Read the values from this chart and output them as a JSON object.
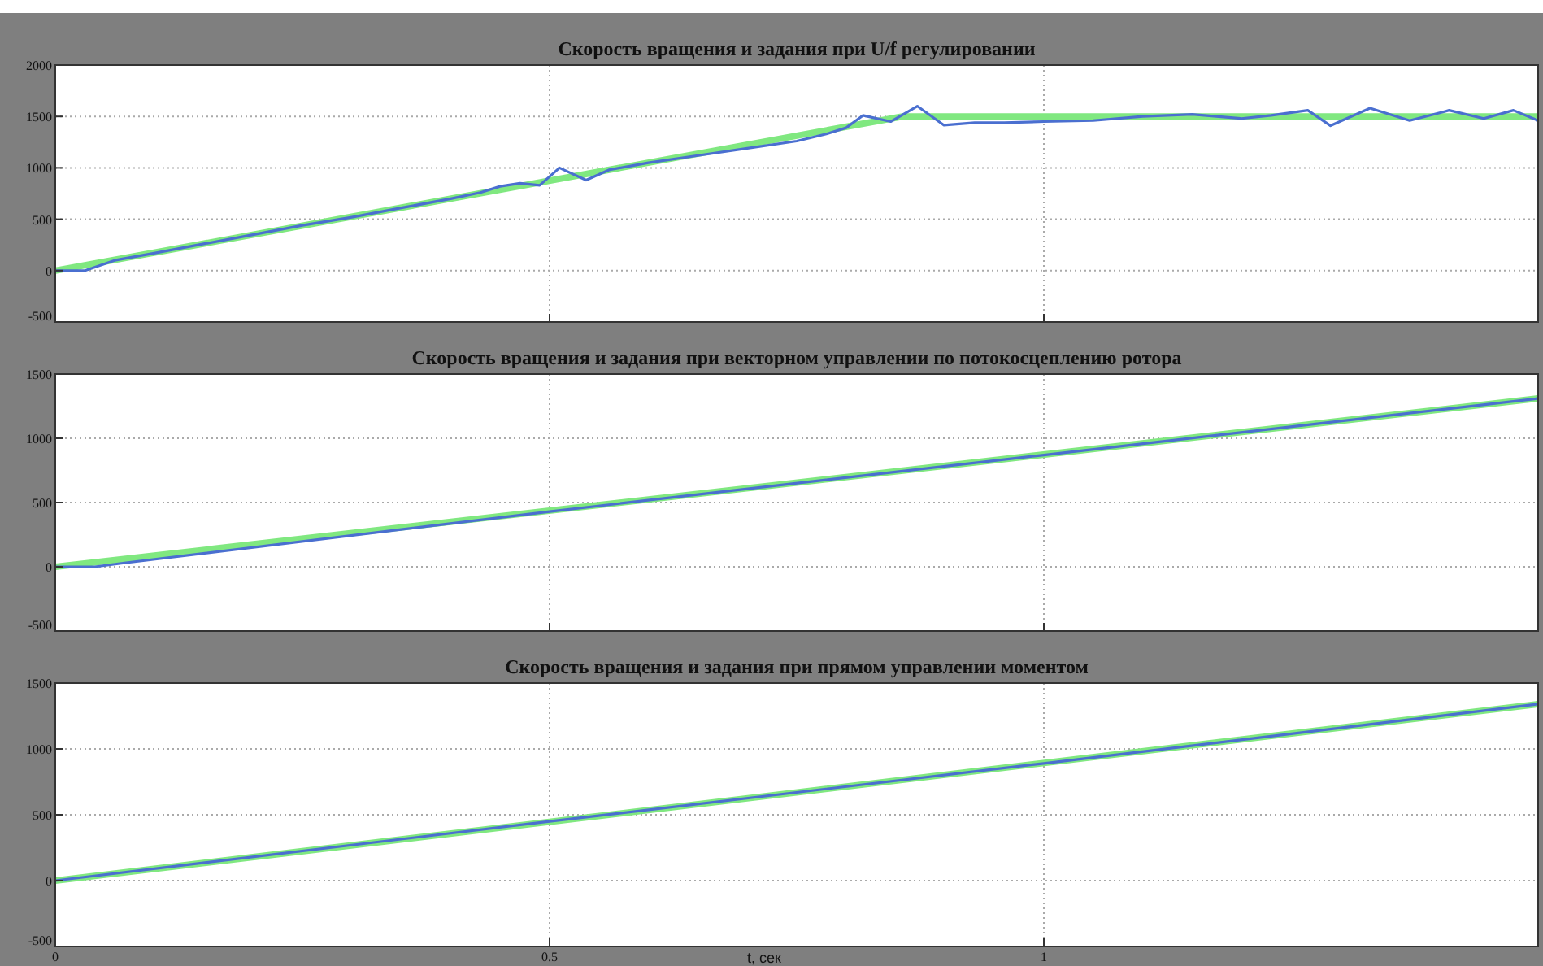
{
  "chart_data": [
    {
      "type": "line",
      "title": "Скорость вращения и задания при U/f регулировании",
      "xlim": [
        0,
        1.5
      ],
      "xticks": [
        0,
        0.5,
        1
      ],
      "ylim": [
        -500,
        2000
      ],
      "yticks": [
        -500,
        0,
        500,
        1000,
        1500,
        2000
      ],
      "grid": true,
      "tick_labels": "y",
      "series": [
        {
          "color": "#80e880",
          "x": [
            0,
            0.857,
            1.5
          ],
          "values": [
            0,
            1500,
            1500
          ]
        },
        {
          "color": "#4a6fd0",
          "x": [
            0,
            0.03,
            0.06,
            0.1,
            0.15,
            0.2,
            0.25,
            0.3,
            0.35,
            0.4,
            0.43,
            0.45,
            0.47,
            0.49,
            0.51,
            0.537,
            0.56,
            0.6,
            0.65,
            0.7,
            0.75,
            0.78,
            0.8,
            0.817,
            0.845,
            0.872,
            0.899,
            0.93,
            0.96,
            1.0,
            1.05,
            1.1,
            1.15,
            1.2,
            1.23,
            1.267,
            1.29,
            1.33,
            1.37,
            1.41,
            1.445,
            1.475,
            1.5
          ],
          "values": [
            0,
            0,
            100,
            170,
            260,
            350,
            440,
            520,
            610,
            700,
            760,
            820,
            850,
            830,
            1000,
            880,
            980,
            1050,
            1120,
            1190,
            1260,
            1330,
            1390,
            1510,
            1450,
            1600,
            1415,
            1440,
            1440,
            1450,
            1460,
            1500,
            1520,
            1480,
            1510,
            1560,
            1410,
            1580,
            1460,
            1560,
            1480,
            1560,
            1460
          ]
        }
      ]
    },
    {
      "type": "line",
      "title": "Скорость вращения и задания при векторном управлении по потокосцеплению ротора",
      "xlim": [
        0,
        1.5
      ],
      "xticks": [
        0,
        0.5,
        1
      ],
      "ylim": [
        -500,
        1500
      ],
      "yticks": [
        -500,
        0,
        500,
        1000,
        1500
      ],
      "grid": true,
      "tick_labels": "y",
      "series": [
        {
          "color": "#80e880",
          "x": [
            0,
            1.5
          ],
          "values": [
            0,
            1310
          ]
        },
        {
          "color": "#4a6fd0",
          "x": [
            0,
            0.04,
            0.07,
            0.5,
            1.0,
            1.5
          ],
          "values": [
            0,
            0,
            30,
            430,
            870,
            1310
          ]
        }
      ]
    },
    {
      "type": "line",
      "title": "Скорость вращения и задания при прямом управлении моментом",
      "xlabel": "t, сек",
      "xlim": [
        0,
        1.5
      ],
      "xticks": [
        0,
        0.5,
        1
      ],
      "ylim": [
        -500,
        1500
      ],
      "yticks": [
        -500,
        0,
        500,
        1000,
        1500
      ],
      "grid": true,
      "series": [
        {
          "color": "#80e880",
          "x": [
            0,
            1.5
          ],
          "values": [
            0,
            1340
          ]
        },
        {
          "color": "#4a6fd0",
          "x": [
            0,
            0.5,
            1.0,
            1.5
          ],
          "values": [
            0,
            450,
            890,
            1340
          ]
        }
      ]
    }
  ]
}
